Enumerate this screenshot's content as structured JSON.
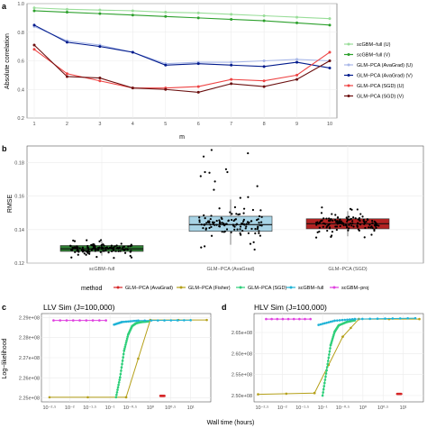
{
  "panel_labels": [
    "a",
    "b",
    "c",
    "d"
  ],
  "chart_data": [
    {
      "type": "line",
      "panel": "a",
      "xlabel": "m",
      "ylabel": "Absolute correlation",
      "x": [
        1,
        2,
        3,
        4,
        5,
        6,
        7,
        8,
        9,
        10
      ],
      "xticks": [
        "1",
        "2",
        "3",
        "4",
        "5",
        "6",
        "7",
        "8",
        "9",
        "10"
      ],
      "ylim": [
        0.2,
        1.0
      ],
      "yticks": [
        "0.2",
        "0.4",
        "0.6",
        "0.8",
        "1.0"
      ],
      "grid": true,
      "legend_position": "right",
      "series": [
        {
          "name": "scGBM−full (U)",
          "color": "#99dd99",
          "values": [
            0.97,
            0.96,
            0.955,
            0.95,
            0.94,
            0.935,
            0.925,
            0.915,
            0.905,
            0.895
          ]
        },
        {
          "name": "scGBM−full (V)",
          "color": "#2ca02c",
          "values": [
            0.95,
            0.94,
            0.93,
            0.92,
            0.91,
            0.9,
            0.89,
            0.88,
            0.865,
            0.85
          ]
        },
        {
          "name": "GLM−PCA (AvaGrad) (U)",
          "color": "#a9b8e8",
          "values": [
            0.84,
            0.74,
            0.71,
            0.66,
            0.58,
            0.59,
            0.59,
            0.6,
            0.61,
            0.6
          ]
        },
        {
          "name": "GLM−PCA (AvaGrad) (V)",
          "color": "#001a8c",
          "values": [
            0.85,
            0.73,
            0.7,
            0.66,
            0.57,
            0.58,
            0.57,
            0.56,
            0.59,
            0.55
          ]
        },
        {
          "name": "GLM−PCA (SGD) (U)",
          "color": "#ee4444",
          "values": [
            0.68,
            0.51,
            0.46,
            0.41,
            0.41,
            0.42,
            0.47,
            0.46,
            0.5,
            0.66
          ]
        },
        {
          "name": "GLM−PCA (SGD) (V)",
          "color": "#6b0f0f",
          "values": [
            0.71,
            0.49,
            0.48,
            0.41,
            0.4,
            0.38,
            0.44,
            0.42,
            0.47,
            0.6
          ]
        }
      ]
    },
    {
      "type": "box",
      "panel": "b",
      "ylabel": "RMSE",
      "ylim": [
        0.12,
        0.19
      ],
      "yticks": [
        "0.12",
        "0.14",
        "0.16",
        "0.18"
      ],
      "categories": [
        "scGBM−full",
        "GLM−PCA (AvaGrad)",
        "GLM−PCA (SGD)"
      ],
      "colors": [
        "#2e7d32",
        "#a8d4e6",
        "#b22222"
      ],
      "boxes": [
        {
          "q1": 0.127,
          "median": 0.1285,
          "q3": 0.1305,
          "whisker_low": 0.1245,
          "whisker_high": 0.133
        },
        {
          "q1": 0.139,
          "median": 0.143,
          "q3": 0.148,
          "whisker_low": 0.131,
          "whisker_high": 0.158
        },
        {
          "q1": 0.1405,
          "median": 0.1435,
          "q3": 0.1465,
          "whisker_low": 0.136,
          "whisker_high": 0.151
        }
      ],
      "point_ranges": [
        [
          0.123,
          0.134
        ],
        [
          0.128,
          0.191
        ],
        [
          0.135,
          0.154
        ]
      ],
      "legend_title": "method",
      "legend_items": [
        {
          "label": "GLM−PCA (AvaGrad)",
          "color": "#d62728"
        },
        {
          "label": "GLM−PCA (Fisher)",
          "color": "#b5a019"
        },
        {
          "label": "GLM−PCA (SGD)",
          "color": "#2ecf7a"
        },
        {
          "label": "scGBM−full",
          "color": "#1fb3d6"
        },
        {
          "label": "scGBM−proj",
          "color": "#e040e0"
        }
      ]
    },
    {
      "type": "line",
      "panel": "c",
      "title": "LLV Sim (J=100,000)",
      "ylabel": "Log−likelihood",
      "xlabel": "Wall time (hours)",
      "x_scale": "log10",
      "xlim_log10": [
        -2.7,
        1.5
      ],
      "xticks": [
        "10⁻²·⁵",
        "10⁻²",
        "10⁻¹·⁵",
        "10⁻¹",
        "10⁻⁰·⁵",
        "10⁰",
        "10⁰·⁵",
        "10¹"
      ],
      "ylim": [
        224800000.0,
        229200000.0
      ],
      "yticks": [
        "2.25e+08",
        "2.26e+08",
        "2.27e+08",
        "2.28e+08",
        "2.29e+08"
      ],
      "series": [
        {
          "name": "GLM−PCA (Fisher)",
          "color": "#b5a019",
          "points": [
            [
              -2.5,
              225030000.0
            ],
            [
              -0.6,
              225030000.0
            ],
            [
              0.0,
              228880000.0
            ],
            [
              1.4,
              228880000.0
            ]
          ]
        },
        {
          "name": "GLM−PCA (SGD)",
          "color": "#2ecf7a",
          "points": [
            [
              -0.85,
              225030000.0
            ],
            [
              -0.75,
              226020000.0
            ],
            [
              -0.65,
              227350000.0
            ],
            [
              -0.55,
              228150000.0
            ],
            [
              -0.45,
              228580000.0
            ],
            [
              -0.35,
              228720000.0
            ],
            [
              -0.25,
              228770000.0
            ],
            [
              -0.05,
              228810000.0
            ]
          ]
        },
        {
          "name": "scGBM−full",
          "color": "#1fb3d6",
          "points": [
            [
              -0.9,
              228650000.0
            ],
            [
              -0.7,
              228780000.0
            ],
            [
              -0.3,
              228850000.0
            ],
            [
              1.0,
              228870000.0
            ]
          ]
        },
        {
          "name": "scGBM−proj",
          "color": "#e040e0",
          "points": [
            [
              -2.4,
              228860000.0
            ],
            [
              -1.1,
              228860000.0
            ]
          ]
        },
        {
          "name": "GLM−PCA (AvaGrad)",
          "color": "#d62728",
          "points": [
            [
              0.25,
              225100000.0
            ],
            [
              0.35,
              225100000.0
            ]
          ]
        }
      ]
    },
    {
      "type": "line",
      "panel": "d",
      "title": "HLV Sim (J=100,000)",
      "x_scale": "log10",
      "xlim_log10": [
        -2.7,
        1.5
      ],
      "xticks": [
        "10⁻²·⁵",
        "10⁻²",
        "10⁻¹·⁵",
        "10⁻¹",
        "10⁻⁰·⁵",
        "10⁰",
        "10⁰·⁵",
        "10¹"
      ],
      "ylim": [
        248500000.0,
        269500000.0
      ],
      "yticks": [
        "2.50e+08",
        "2.55e+08",
        "2.60e+08",
        "2.65e+08"
      ],
      "series": [
        {
          "name": "GLM−PCA (Fisher)",
          "color": "#b5a019",
          "points": [
            [
              -2.6,
              250300000.0
            ],
            [
              -1.2,
              250600000.0
            ],
            [
              -0.5,
              264000000.0
            ],
            [
              -0.1,
              268200000.0
            ],
            [
              1.4,
              268200000.0
            ]
          ]
        },
        {
          "name": "GLM−PCA (SGD)",
          "color": "#2ecf7a",
          "points": [
            [
              -1.0,
              250000000.0
            ],
            [
              -0.9,
              256000000.0
            ],
            [
              -0.8,
              262000000.0
            ],
            [
              -0.7,
              265200000.0
            ],
            [
              -0.6,
              266700000.0
            ],
            [
              -0.4,
              267500000.0
            ],
            [
              -0.2,
              267900000.0
            ]
          ]
        },
        {
          "name": "scGBM−full",
          "color": "#1fb3d6",
          "points": [
            [
              -1.1,
              266800000.0
            ],
            [
              -0.7,
              267800000.0
            ],
            [
              -0.2,
              268200000.0
            ],
            [
              1.3,
              268400000.0
            ]
          ]
        },
        {
          "name": "scGBM−proj",
          "color": "#e040e0",
          "points": [
            [
              -2.4,
              268200000.0
            ],
            [
              -1.3,
              268200000.0
            ]
          ]
        },
        {
          "name": "GLM−PCA (AvaGrad)",
          "color": "#d62728",
          "points": [
            [
              0.85,
              250400000.0
            ],
            [
              0.95,
              250400000.0
            ]
          ]
        }
      ]
    }
  ]
}
